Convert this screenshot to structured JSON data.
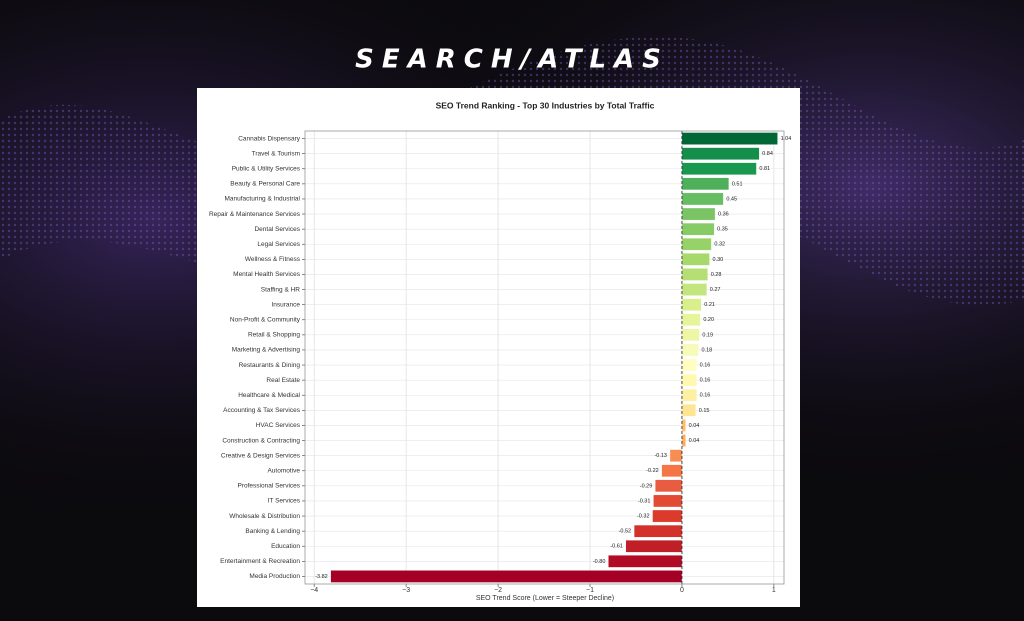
{
  "brand": "SEARCH/ATLAS",
  "chart_data": {
    "type": "barh",
    "title": "SEO Trend Ranking - Top 30 Industries by Total Traffic",
    "x_label": "SEO Trend Score (Lower = Steeper Decline)",
    "categories": [
      "Cannabis Dispensary",
      "Travel & Tourism",
      "Public & Utility Services",
      "Beauty & Personal Care",
      "Manufacturing & Industrial",
      "Repair & Maintenance Services",
      "Dental Services",
      "Legal Services",
      "Wellness & Fitness",
      "Mental Health Services",
      "Staffing & HR",
      "Insurance",
      "Non-Profit & Community",
      "Retail & Shopping",
      "Marketing & Advertising",
      "Restaurants & Dining",
      "Real Estate",
      "Healthcare & Medical",
      "Accounting & Tax Services",
      "HVAC Services",
      "Construction & Contracting",
      "Creative & Design Services",
      "Automotive",
      "Professional Services",
      "IT Services",
      "Wholesale & Distribution",
      "Banking & Lending",
      "Education",
      "Entertainment & Recreation",
      "Media Production"
    ],
    "values": [
      1.04,
      0.84,
      0.81,
      0.51,
      0.45,
      0.36,
      0.35,
      0.32,
      0.3,
      0.28,
      0.27,
      0.21,
      0.2,
      0.19,
      0.18,
      0.16,
      0.16,
      0.16,
      0.15,
      0.04,
      0.04,
      -0.13,
      -0.22,
      -0.29,
      -0.31,
      -0.32,
      -0.52,
      -0.61,
      -0.8,
      -3.82
    ],
    "value_labels": [
      "1.04",
      "0.84",
      "0.81",
      "0.51",
      "0.45",
      "0.36",
      "0.35",
      "0.32",
      "0.30",
      "0.28",
      "0.27",
      "0.21",
      "0.20",
      "0.19",
      "0.18",
      "0.16",
      "0.16",
      "0.16",
      "0.15",
      "0.04",
      "0.04",
      "-0.13",
      "-0.22",
      "-0.29",
      "-0.31",
      "-0.32",
      "-0.52",
      "-0.61",
      "-0.80",
      "-3.82"
    ],
    "colors": [
      "#006837",
      "#148e4a",
      "#1a9850",
      "#4eb05b",
      "#66bd63",
      "#7ac466",
      "#86cb66",
      "#96d268",
      "#a6d96a",
      "#b5df74",
      "#c3e57e",
      "#d9ef8b",
      "#e6f49a",
      "#eef6a6",
      "#f7fab8",
      "#fffdc0",
      "#fff8b0",
      "#fef0a3",
      "#fee593",
      "#fdbf6f",
      "#fdae61",
      "#f88d52",
      "#f57547",
      "#e85d41",
      "#e34a33",
      "#dc3b2c",
      "#d3322b",
      "#c01f27",
      "#b10b26",
      "#a50026"
    ],
    "xlim": [
      -4.1,
      1.11
    ],
    "xticks": [
      {
        "value": -4,
        "label": "−4"
      },
      {
        "value": -3,
        "label": "−3"
      },
      {
        "value": -2,
        "label": "−2"
      },
      {
        "value": -1,
        "label": "−1"
      },
      0,
      1
    ],
    "grid": true
  }
}
